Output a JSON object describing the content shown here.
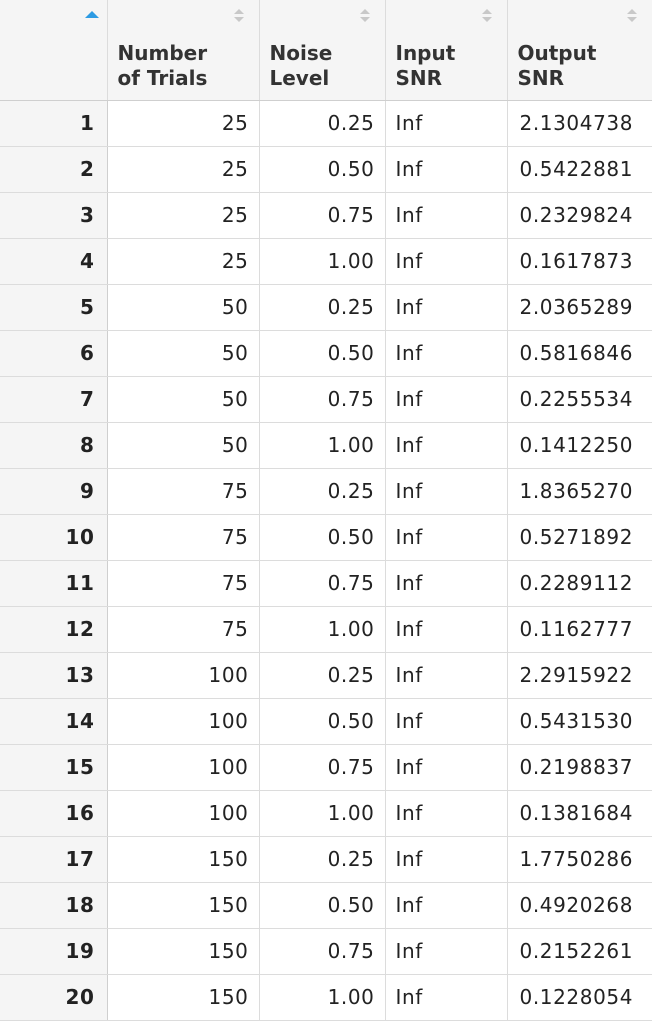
{
  "columns": {
    "index": "",
    "trials": [
      "Number",
      "of",
      "Trials"
    ],
    "noise": [
      "Noise",
      "Level"
    ],
    "input": [
      "Input",
      "SNR"
    ],
    "output": [
      "Output",
      "SNR"
    ]
  },
  "sort": {
    "column": "index",
    "direction": "ascending"
  },
  "colors": {
    "sort_active": "#2d9be3",
    "header_bg": "#f5f5f5",
    "border": "#dcdcdc"
  },
  "rows": [
    {
      "index": "1",
      "trials": "25",
      "noise": "0.25",
      "input": "Inf",
      "output": "2.1304738"
    },
    {
      "index": "2",
      "trials": "25",
      "noise": "0.50",
      "input": "Inf",
      "output": "0.5422881"
    },
    {
      "index": "3",
      "trials": "25",
      "noise": "0.75",
      "input": "Inf",
      "output": "0.2329824"
    },
    {
      "index": "4",
      "trials": "25",
      "noise": "1.00",
      "input": "Inf",
      "output": "0.1617873"
    },
    {
      "index": "5",
      "trials": "50",
      "noise": "0.25",
      "input": "Inf",
      "output": "2.0365289"
    },
    {
      "index": "6",
      "trials": "50",
      "noise": "0.50",
      "input": "Inf",
      "output": "0.5816846"
    },
    {
      "index": "7",
      "trials": "50",
      "noise": "0.75",
      "input": "Inf",
      "output": "0.2255534"
    },
    {
      "index": "8",
      "trials": "50",
      "noise": "1.00",
      "input": "Inf",
      "output": "0.1412250"
    },
    {
      "index": "9",
      "trials": "75",
      "noise": "0.25",
      "input": "Inf",
      "output": "1.8365270"
    },
    {
      "index": "10",
      "trials": "75",
      "noise": "0.50",
      "input": "Inf",
      "output": "0.5271892"
    },
    {
      "index": "11",
      "trials": "75",
      "noise": "0.75",
      "input": "Inf",
      "output": "0.2289112"
    },
    {
      "index": "12",
      "trials": "75",
      "noise": "1.00",
      "input": "Inf",
      "output": "0.1162777"
    },
    {
      "index": "13",
      "trials": "100",
      "noise": "0.25",
      "input": "Inf",
      "output": "2.2915922"
    },
    {
      "index": "14",
      "trials": "100",
      "noise": "0.50",
      "input": "Inf",
      "output": "0.5431530"
    },
    {
      "index": "15",
      "trials": "100",
      "noise": "0.75",
      "input": "Inf",
      "output": "0.2198837"
    },
    {
      "index": "16",
      "trials": "100",
      "noise": "1.00",
      "input": "Inf",
      "output": "0.1381684"
    },
    {
      "index": "17",
      "trials": "150",
      "noise": "0.25",
      "input": "Inf",
      "output": "1.7750286"
    },
    {
      "index": "18",
      "trials": "150",
      "noise": "0.50",
      "input": "Inf",
      "output": "0.4920268"
    },
    {
      "index": "19",
      "trials": "150",
      "noise": "0.75",
      "input": "Inf",
      "output": "0.2152261"
    },
    {
      "index": "20",
      "trials": "150",
      "noise": "1.00",
      "input": "Inf",
      "output": "0.1228054"
    }
  ]
}
